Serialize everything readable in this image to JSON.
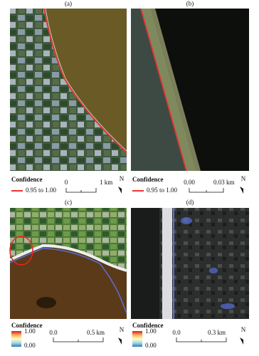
{
  "panels": [
    {
      "label": "(a)",
      "legend_title": "Confidence",
      "legend_item": "0.95 to 1.00",
      "scale": [
        "0",
        "1 km"
      ],
      "north": "N"
    },
    {
      "label": "(b)",
      "legend_title": "Confidence",
      "legend_item": "0.95 to 1.00",
      "scale": [
        "0.00",
        "0.03 km"
      ],
      "north": "N"
    },
    {
      "label": "(c)",
      "legend_title": "Confidence",
      "colorbar": [
        "1.00",
        "0.00"
      ],
      "scale": [
        "0.0",
        "0.5 km"
      ],
      "north": "N"
    },
    {
      "label": "(d)",
      "legend_title": "Confidence",
      "colorbar": [
        "1.00",
        "0.00"
      ],
      "scale": [
        "0.0",
        "0.3 km"
      ],
      "north": "N"
    }
  ]
}
